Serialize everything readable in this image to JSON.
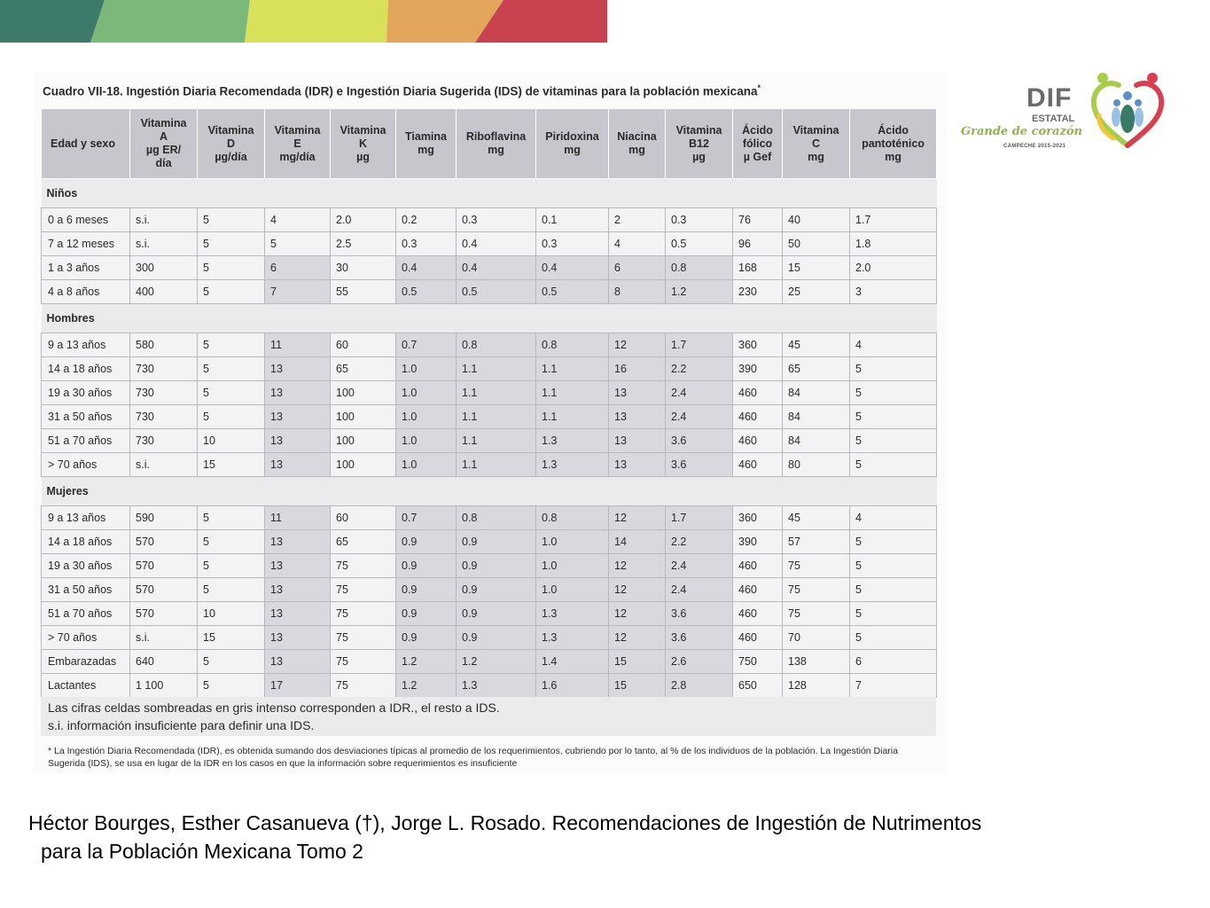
{
  "banner": {
    "colors": [
      "#3e7a6a",
      "#7cb87a",
      "#d9e05a",
      "#e3a45c",
      "#c8434f"
    ]
  },
  "caption": {
    "text": "Cuadro VII-18. Ingestión Diaria Recomendada (IDR) e Ingestión Diaria Sugerida (IDS) de vitaminas para la población mexicana",
    "marker": "*"
  },
  "table": {
    "headers": [
      "Edad y sexo",
      "Vitamina\nA\nµg ER/\ndía",
      "Vitamina\nD\nµg/día",
      "Vitamina\nE\nmg/día",
      "Vitamina\nK\nµg",
      "Tiamina\nmg",
      "Riboflavina\nmg",
      "Piridoxina\nmg",
      "Niacina\nmg",
      "Vitamina\nB12\nµg",
      "Ácido\nfólico\nµ Gef",
      "Vitamina\nC\nmg",
      "Ácido\npantoténico\nmg"
    ],
    "groups": [
      {
        "name": "Niños",
        "rows": [
          [
            "0 a 6 meses",
            "s.i.",
            "5",
            "4",
            "2.0",
            "0.2",
            "0.3",
            "0.1",
            "2",
            "0.3",
            "76",
            "40",
            "1.7"
          ],
          [
            "7 a 12 meses",
            "s.i.",
            "5",
            "5",
            "2.5",
            "0.3",
            "0.4",
            "0.3",
            "4",
            "0.5",
            "96",
            "50",
            "1.8"
          ],
          [
            "1 a 3 años",
            "300",
            "5",
            "6",
            "30",
            "0.4",
            "0.4",
            "0.4",
            "6",
            "0.8",
            "168",
            "15",
            "2.0"
          ],
          [
            "4 a 8 años",
            "400",
            "5",
            "7",
            "55",
            "0.5",
            "0.5",
            "0.5",
            "8",
            "1.2",
            "230",
            "25",
            "3"
          ]
        ]
      },
      {
        "name": "Hombres",
        "rows": [
          [
            "9 a 13 años",
            "580",
            "5",
            "11",
            "60",
            "0.7",
            "0.8",
            "0.8",
            "12",
            "1.7",
            "360",
            "45",
            "4"
          ],
          [
            "14 a 18 años",
            "730",
            "5",
            "13",
            "65",
            "1.0",
            "1.1",
            "1.1",
            "16",
            "2.2",
            "390",
            "65",
            "5"
          ],
          [
            "19 a 30 años",
            "730",
            "5",
            "13",
            "100",
            "1.0",
            "1.1",
            "1.1",
            "13",
            "2.4",
            "460",
            "84",
            "5"
          ],
          [
            "31 a 50 años",
            "730",
            "5",
            "13",
            "100",
            "1.0",
            "1.1",
            "1.1",
            "13",
            "2.4",
            "460",
            "84",
            "5"
          ],
          [
            "51 a 70 años",
            "730",
            "10",
            "13",
            "100",
            "1.0",
            "1.1",
            "1.3",
            "13",
            "3.6",
            "460",
            "84",
            "5"
          ],
          [
            "> 70 años",
            "s.i.",
            "15",
            "13",
            "100",
            "1.0",
            "1.1",
            "1.3",
            "13",
            "3.6",
            "460",
            "80",
            "5"
          ]
        ]
      },
      {
        "name": "Mujeres",
        "rows": [
          [
            "9 a 13 años",
            "590",
            "5",
            "11",
            "60",
            "0.7",
            "0.8",
            "0.8",
            "12",
            "1.7",
            "360",
            "45",
            "4"
          ],
          [
            "14 a 18 años",
            "570",
            "5",
            "13",
            "65",
            "0.9",
            "0.9",
            "1.0",
            "14",
            "2.2",
            "390",
            "57",
            "5"
          ],
          [
            "19 a 30 años",
            "570",
            "5",
            "13",
            "75",
            "0.9",
            "0.9",
            "1.0",
            "12",
            "2.4",
            "460",
            "75",
            "5"
          ],
          [
            "31 a 50 años",
            "570",
            "5",
            "13",
            "75",
            "0.9",
            "0.9",
            "1.0",
            "12",
            "2.4",
            "460",
            "75",
            "5"
          ],
          [
            "51 a 70 años",
            "570",
            "10",
            "13",
            "75",
            "0.9",
            "0.9",
            "1.3",
            "12",
            "3.6",
            "460",
            "75",
            "5"
          ],
          [
            "> 70 años",
            "s.i.",
            "15",
            "13",
            "75",
            "0.9",
            "0.9",
            "1.3",
            "12",
            "3.6",
            "460",
            "70",
            "5"
          ],
          [
            "Embarazadas",
            "640",
            "5",
            "13",
            "75",
            "1.2",
            "1.2",
            "1.4",
            "15",
            "2.6",
            "750",
            "138",
            "6"
          ],
          [
            "Lactantes",
            "1 100",
            "5",
            "17",
            "75",
            "1.2",
            "1.3",
            "1.6",
            "15",
            "2.8",
            "650",
            "128",
            "7"
          ]
        ]
      }
    ],
    "notes": [
      "Las cifras celdas sombreadas en gris intenso corresponden a IDR., el resto a IDS.",
      "s.i. información insuficiente para definir una IDS."
    ],
    "footnote": "* La Ingestión Diaria Recomendada (IDR), es obtenida sumando dos desviaciones típicas al promedio de los requerimientos, cubriendo por lo tanto, al % de los individuos de la población. La Ingestión Diaria Sugerida (IDS), se usa en lugar de la IDR en los casos en que la información sobre requerimientos es insuficiente"
  },
  "logo": {
    "title": "DIF",
    "subtitle": "ESTATAL",
    "slogan": "Grande de corazón",
    "period": "CAMPECHE 2015-2021"
  },
  "reference": {
    "line1": "Héctor Bourges, Esther Casanueva (†), Jorge L. Rosado. Recomendaciones de Ingestión de Nutrimentos",
    "line2": "para la Población Mexicana Tomo 2"
  }
}
